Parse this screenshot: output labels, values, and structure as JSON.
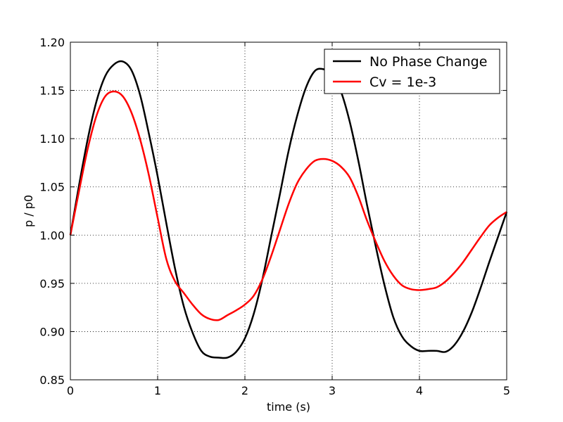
{
  "chart_data": {
    "type": "line",
    "title": "",
    "xlabel": "time (s)",
    "ylabel": "p / p0",
    "xlim": [
      0,
      5
    ],
    "ylim": [
      0.85,
      1.2
    ],
    "xticks": [
      "0",
      "1",
      "2",
      "3",
      "4",
      "5"
    ],
    "yticks": [
      "0.85",
      "0.90",
      "0.95",
      "1.00",
      "1.05",
      "1.10",
      "1.15",
      "1.20"
    ],
    "grid": true,
    "legend_position": "top-right",
    "series": [
      {
        "name": "No Phase Change",
        "color": "#000000",
        "x": [
          0,
          0.1,
          0.2,
          0.3,
          0.4,
          0.5,
          0.6,
          0.7,
          0.8,
          0.9,
          1.0,
          1.1,
          1.2,
          1.3,
          1.4,
          1.5,
          1.6,
          1.7,
          1.8,
          1.9,
          2.0,
          2.1,
          2.2,
          2.3,
          2.4,
          2.5,
          2.6,
          2.7,
          2.8,
          2.9,
          3.0,
          3.1,
          3.2,
          3.3,
          3.4,
          3.5,
          3.6,
          3.7,
          3.8,
          3.9,
          4.0,
          4.1,
          4.2,
          4.3,
          4.4,
          4.5,
          4.6,
          4.7,
          4.8,
          4.9,
          5.0
        ],
        "y": [
          1.0,
          1.052,
          1.1,
          1.139,
          1.165,
          1.177,
          1.18,
          1.171,
          1.145,
          1.105,
          1.061,
          1.012,
          0.965,
          0.926,
          0.899,
          0.88,
          0.874,
          0.873,
          0.873,
          0.879,
          0.893,
          0.918,
          0.954,
          0.998,
          1.042,
          1.087,
          1.124,
          1.153,
          1.17,
          1.172,
          1.166,
          1.149,
          1.118,
          1.077,
          1.031,
          0.988,
          0.948,
          0.915,
          0.895,
          0.885,
          0.88,
          0.88,
          0.88,
          0.879,
          0.886,
          0.9,
          0.92,
          0.945,
          0.972,
          0.998,
          1.024
        ]
      },
      {
        "name": "Cv = 1e-3",
        "color": "#ff0000",
        "x": [
          0,
          0.1,
          0.2,
          0.3,
          0.4,
          0.5,
          0.6,
          0.7,
          0.8,
          0.9,
          1.0,
          1.1,
          1.2,
          1.3,
          1.4,
          1.5,
          1.6,
          1.7,
          1.8,
          1.9,
          2.0,
          2.1,
          2.2,
          2.3,
          2.4,
          2.5,
          2.6,
          2.7,
          2.8,
          2.9,
          3.0,
          3.1,
          3.2,
          3.3,
          3.4,
          3.5,
          3.6,
          3.7,
          3.8,
          3.9,
          4.0,
          4.1,
          4.2,
          4.3,
          4.4,
          4.5,
          4.6,
          4.7,
          4.8,
          4.9,
          5.0
        ],
        "y": [
          1.0,
          1.046,
          1.09,
          1.124,
          1.144,
          1.149,
          1.144,
          1.127,
          1.099,
          1.062,
          1.018,
          0.975,
          0.952,
          0.94,
          0.928,
          0.918,
          0.913,
          0.912,
          0.917,
          0.922,
          0.928,
          0.937,
          0.954,
          0.978,
          1.005,
          1.032,
          1.054,
          1.068,
          1.077,
          1.079,
          1.077,
          1.071,
          1.06,
          1.04,
          1.015,
          0.993,
          0.973,
          0.958,
          0.948,
          0.944,
          0.943,
          0.944,
          0.946,
          0.952,
          0.961,
          0.972,
          0.985,
          0.998,
          1.01,
          1.018,
          1.024
        ]
      }
    ]
  }
}
